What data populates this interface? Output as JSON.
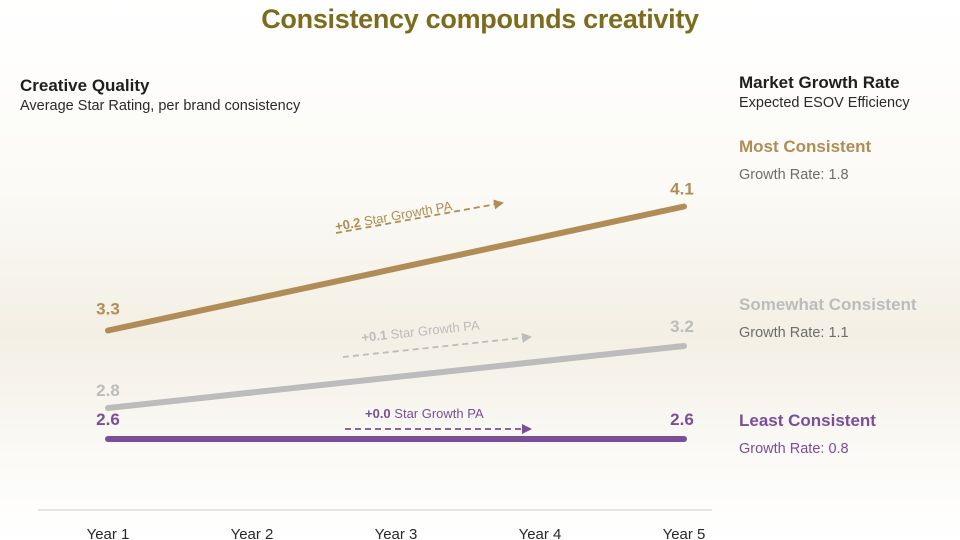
{
  "title": "Consistency compounds creativity",
  "left_header": {
    "title": "Creative Quality",
    "subtitle": "Average Star Rating, per brand consistency"
  },
  "right_header": {
    "title": "Market Growth Rate",
    "subtitle": "Expected ESOV Efficiency"
  },
  "colors": {
    "title": "#7e6c1e",
    "gold": "#b08d57",
    "gray": "#bcbcbc",
    "purple": "#7b4e98",
    "axis": "#dddddd"
  },
  "chart_data": {
    "type": "line",
    "title": "Consistency compounds creativity",
    "ylabel": "Average Star Rating, per brand consistency",
    "categories": [
      "Year 1",
      "Year 2",
      "Year 3",
      "Year 4",
      "Year 5"
    ],
    "ylim": [
      2.5,
      4.1
    ],
    "series": [
      {
        "name": "Most Consistent",
        "color_key": "gold",
        "start": 3.3,
        "end": 4.1,
        "start_label": "3.3",
        "end_label": "4.1",
        "annotation_bold": "+0.2",
        "annotation_text": "Star Growth PA",
        "growth_rate": "Growth Rate: 1.8"
      },
      {
        "name": "Somewhat Consistent",
        "color_key": "gray",
        "start": 2.8,
        "end": 3.2,
        "start_label": "2.8",
        "end_label": "3.2",
        "annotation_bold": "+0.1",
        "annotation_text": "Star Growth PA",
        "growth_rate": "Growth Rate: 1.1"
      },
      {
        "name": "Least Consistent",
        "color_key": "purple",
        "start": 2.6,
        "end": 2.6,
        "start_label": "2.6",
        "end_label": "2.6",
        "annotation_bold": "+0.0",
        "annotation_text": "Star Growth PA",
        "growth_rate": "Growth Rate: 0.8"
      }
    ]
  }
}
